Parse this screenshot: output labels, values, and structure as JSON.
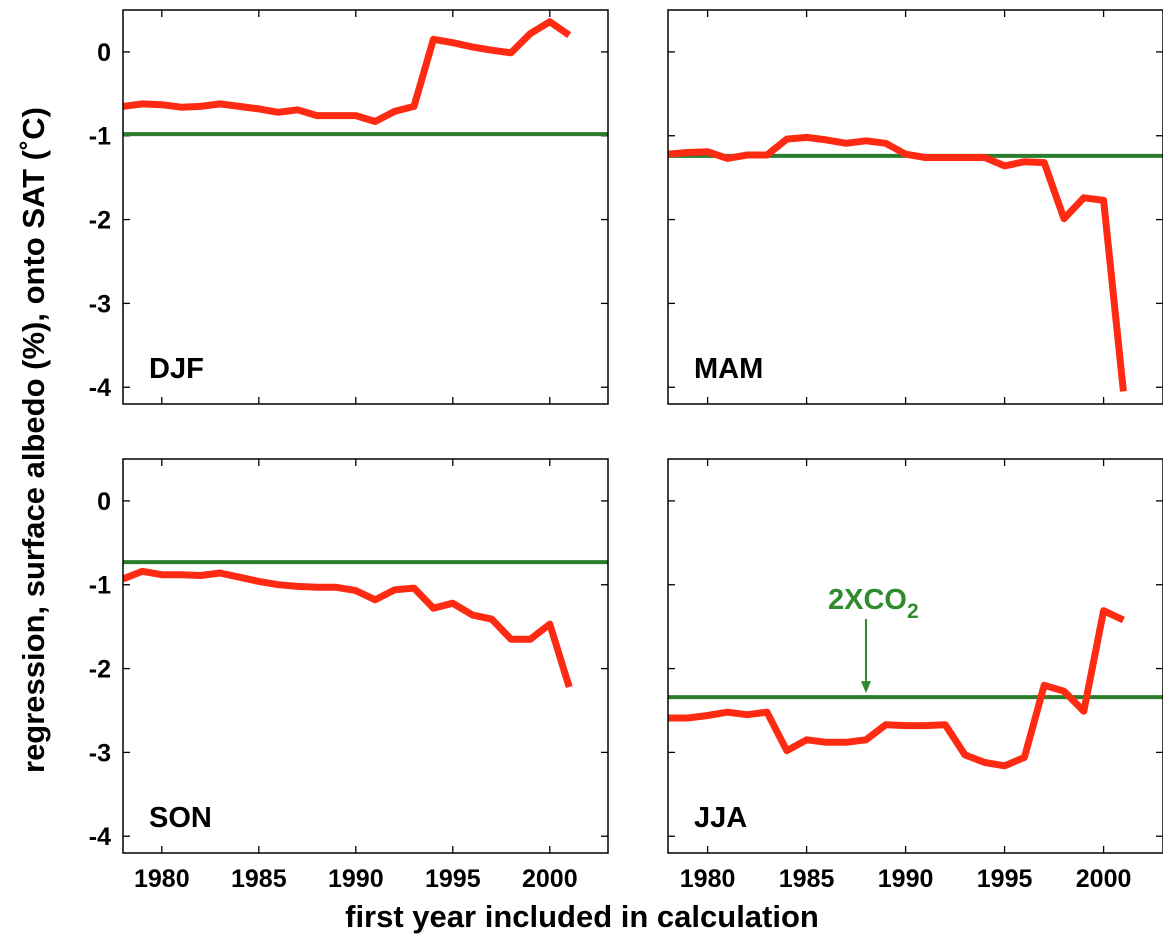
{
  "figure": {
    "xlabel": "first year included in calculation",
    "ylabel": "regression, surface albedo (%), onto SAT (˚C)",
    "colors": {
      "series": "#ff2a12",
      "reference": "#2a7d2a",
      "annotation": "#2e8b2e"
    }
  },
  "chart_data": [
    {
      "type": "line",
      "panel": "DJF",
      "label": "DJF",
      "xlim": [
        1978,
        2003
      ],
      "ylim": [
        -4.2,
        0.5
      ],
      "xticks": [
        1980,
        1985,
        1990,
        1995,
        2000
      ],
      "yticks": [
        0,
        -1,
        -2,
        -3,
        -4
      ],
      "grid": false,
      "x": [
        1978,
        1979,
        1980,
        1981,
        1982,
        1983,
        1984,
        1985,
        1986,
        1987,
        1988,
        1989,
        1990,
        1991,
        1992,
        1993,
        1994,
        1995,
        1996,
        1997,
        1998,
        1999,
        2000,
        2001
      ],
      "values": [
        -0.65,
        -0.62,
        -0.63,
        -0.66,
        -0.65,
        -0.62,
        -0.65,
        -0.68,
        -0.72,
        -0.69,
        -0.76,
        -0.76,
        -0.76,
        -0.83,
        -0.71,
        -0.65,
        0.15,
        0.11,
        0.06,
        0.02,
        -0.01,
        0.22,
        0.36,
        0.2
      ],
      "reference": -0.98
    },
    {
      "type": "line",
      "panel": "MAM",
      "label": "MAM",
      "xlim": [
        1978,
        2003
      ],
      "ylim": [
        -4.2,
        0.5
      ],
      "xticks": [
        1980,
        1985,
        1990,
        1995,
        2000
      ],
      "yticks": [
        0,
        -1,
        -2,
        -3,
        -4
      ],
      "grid": false,
      "x": [
        1978,
        1979,
        1980,
        1981,
        1982,
        1983,
        1984,
        1985,
        1986,
        1987,
        1988,
        1989,
        1990,
        1991,
        1992,
        1993,
        1994,
        1995,
        1996,
        1997,
        1998,
        1999,
        2000,
        2001
      ],
      "values": [
        -1.22,
        -1.2,
        -1.19,
        -1.27,
        -1.23,
        -1.23,
        -1.04,
        -1.02,
        -1.05,
        -1.09,
        -1.06,
        -1.09,
        -1.22,
        -1.26,
        -1.26,
        -1.26,
        -1.26,
        -1.36,
        -1.31,
        -1.32,
        -1.99,
        -1.74,
        -1.77,
        -4.05
      ],
      "reference": -1.24
    },
    {
      "type": "line",
      "panel": "SON",
      "label": "SON",
      "xlim": [
        1978,
        2003
      ],
      "ylim": [
        -4.2,
        0.5
      ],
      "xticks": [
        1980,
        1985,
        1990,
        1995,
        2000
      ],
      "yticks": [
        0,
        -1,
        -2,
        -3,
        -4
      ],
      "grid": false,
      "x": [
        1978,
        1979,
        1980,
        1981,
        1982,
        1983,
        1984,
        1985,
        1986,
        1987,
        1988,
        1989,
        1990,
        1991,
        1992,
        1993,
        1994,
        1995,
        1996,
        1997,
        1998,
        1999,
        2000,
        2001
      ],
      "values": [
        -0.93,
        -0.84,
        -0.88,
        -0.88,
        -0.89,
        -0.86,
        -0.91,
        -0.96,
        -1.0,
        -1.02,
        -1.03,
        -1.03,
        -1.07,
        -1.18,
        -1.06,
        -1.04,
        -1.28,
        -1.22,
        -1.36,
        -1.41,
        -1.65,
        -1.65,
        -1.47,
        -2.22
      ],
      "reference": -0.73
    },
    {
      "type": "line",
      "panel": "JJA",
      "label": "JJA",
      "xlim": [
        1978,
        2003
      ],
      "ylim": [
        -4.2,
        0.5
      ],
      "xticks": [
        1980,
        1985,
        1990,
        1995,
        2000
      ],
      "yticks": [
        0,
        -1,
        -2,
        -3,
        -4
      ],
      "grid": false,
      "x": [
        1978,
        1979,
        1980,
        1981,
        1982,
        1983,
        1984,
        1985,
        1986,
        1987,
        1988,
        1989,
        1990,
        1991,
        1992,
        1993,
        1994,
        1995,
        1996,
        1997,
        1998,
        1999,
        2000,
        2001
      ],
      "values": [
        -2.59,
        -2.59,
        -2.56,
        -2.52,
        -2.55,
        -2.52,
        -2.98,
        -2.85,
        -2.88,
        -2.88,
        -2.85,
        -2.67,
        -2.68,
        -2.68,
        -2.67,
        -3.03,
        -3.12,
        -3.16,
        -3.06,
        -2.2,
        -2.27,
        -2.51,
        -1.31,
        -1.42
      ],
      "reference": -2.34,
      "annotation": {
        "text": "2XCO",
        "subscript": "2",
        "arrow_x": 1988
      }
    }
  ]
}
